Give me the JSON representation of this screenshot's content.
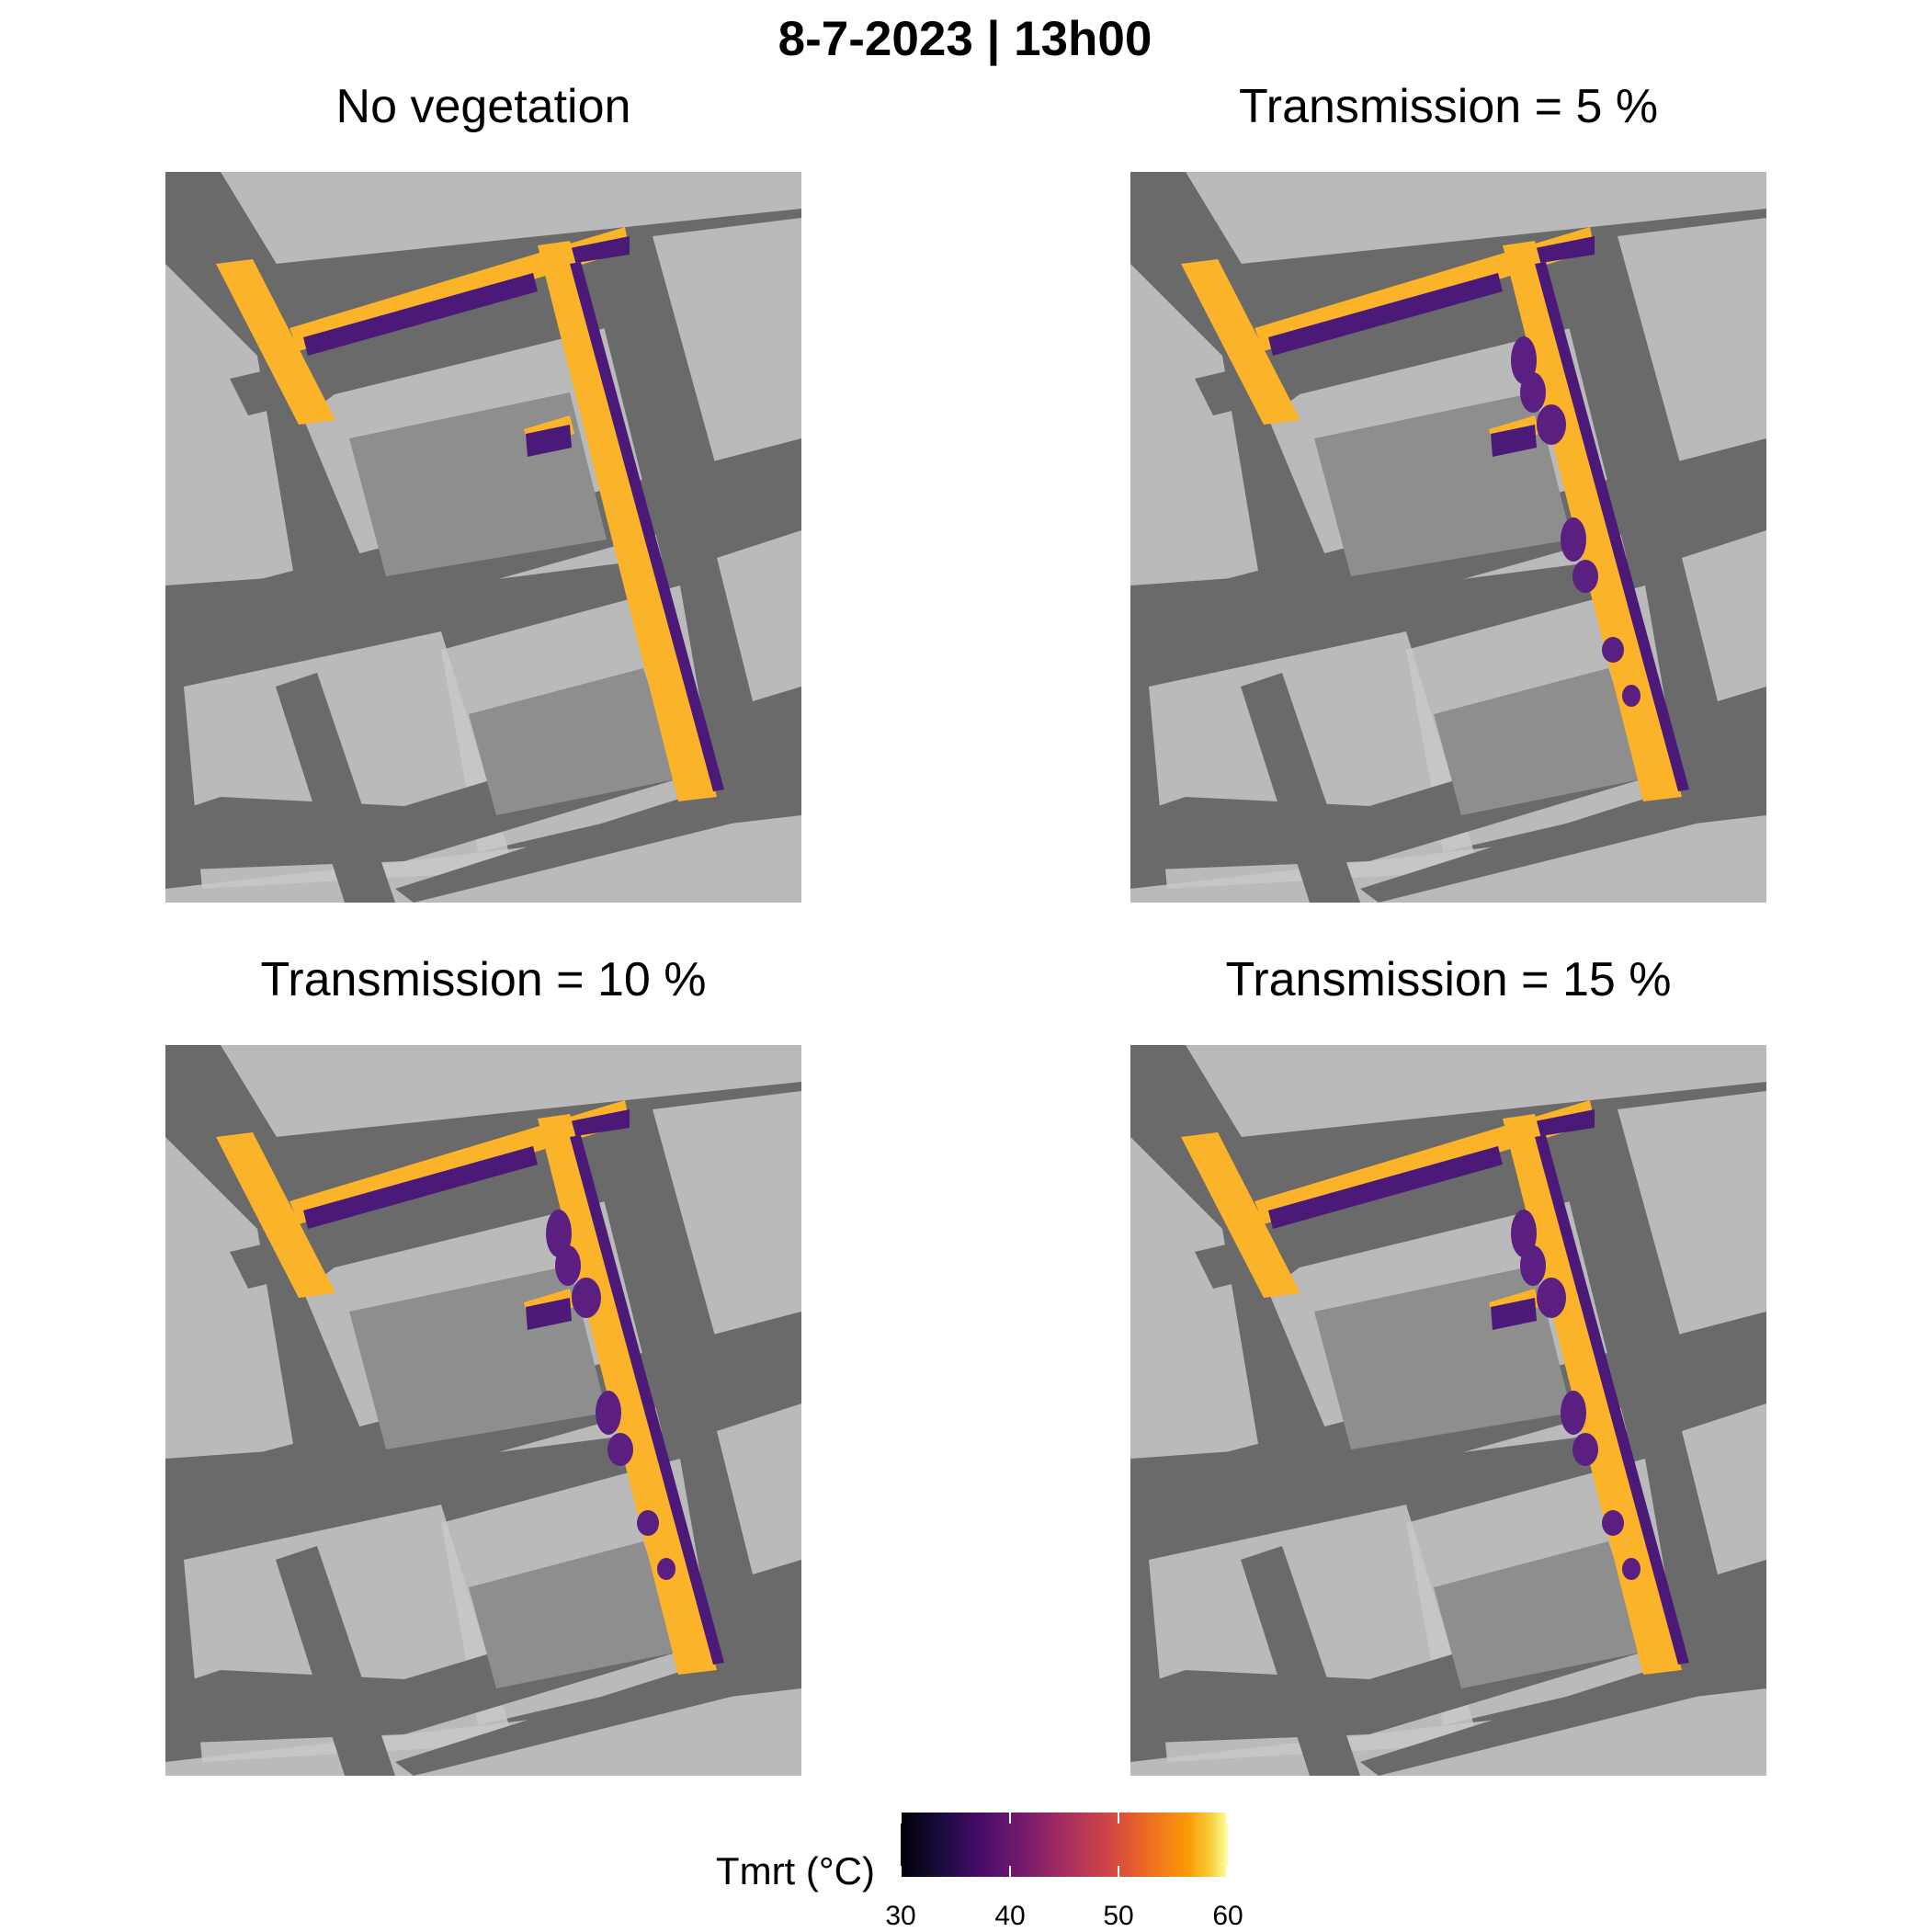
{
  "title": "8-7-2023 | 13h00",
  "panels": [
    {
      "title": "No vegetation",
      "transmission_pct": null
    },
    {
      "title": "Transmission = 5 %",
      "transmission_pct": 5
    },
    {
      "title": "Transmission = 10 %",
      "transmission_pct": 10
    },
    {
      "title": "Transmission = 15 %",
      "transmission_pct": 15
    }
  ],
  "legend": {
    "title": "Tmrt (°C)",
    "ticks": [
      "30",
      "40",
      "50",
      "60"
    ],
    "range": [
      30,
      60
    ],
    "colormap": "inferno"
  },
  "colors": {
    "road": "#6a6a6a",
    "building": "#c8c8c8",
    "shade": "#4b1a78",
    "sun": "#fbb32a",
    "tree_shade": "#5a1f80"
  },
  "chart_data": {
    "type": "heatmap",
    "title": "8-7-2023 | 13h00",
    "facets": [
      "No vegetation",
      "Transmission = 5 %",
      "Transmission = 10 %",
      "Transmission = 15 %"
    ],
    "value_label": "Tmrt (°C)",
    "scale": {
      "min": 30,
      "max": 60,
      "ticks": [
        30,
        40,
        50,
        60
      ]
    },
    "street_sunlit_tmrt_approx": 57,
    "street_shaded_tmrt_approx": 40
  }
}
